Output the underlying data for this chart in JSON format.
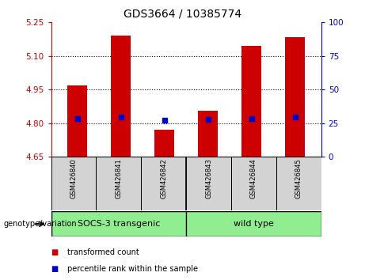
{
  "title": "GDS3664 / 10385774",
  "categories": [
    "GSM426840",
    "GSM426841",
    "GSM426842",
    "GSM426843",
    "GSM426844",
    "GSM426845"
  ],
  "red_values": [
    4.97,
    5.19,
    4.77,
    4.855,
    5.145,
    5.185
  ],
  "blue_values": [
    4.822,
    4.828,
    4.812,
    4.818,
    4.822,
    4.828
  ],
  "y_min": 4.65,
  "y_max": 5.25,
  "y_ticks": [
    4.65,
    4.8,
    4.95,
    5.1,
    5.25
  ],
  "y2_ticks": [
    0,
    25,
    50,
    75,
    100
  ],
  "dotted_lines": [
    4.8,
    4.95,
    5.1
  ],
  "bar_color": "#cc0000",
  "blue_color": "#0000cc",
  "bar_width": 0.45,
  "group_labels": [
    "SOCS-3 transgenic",
    "wild type"
  ],
  "group_colors": [
    "#90ee90",
    "#90ee90"
  ],
  "genotype_label": "genotype/variation",
  "legend_red": "transformed count",
  "legend_blue": "percentile rank within the sample",
  "title_fontsize": 10,
  "tick_fontsize": 7.5,
  "background_color": "#ffffff",
  "tick_color_left": "#cc0000",
  "tick_color_right": "#0000cc"
}
